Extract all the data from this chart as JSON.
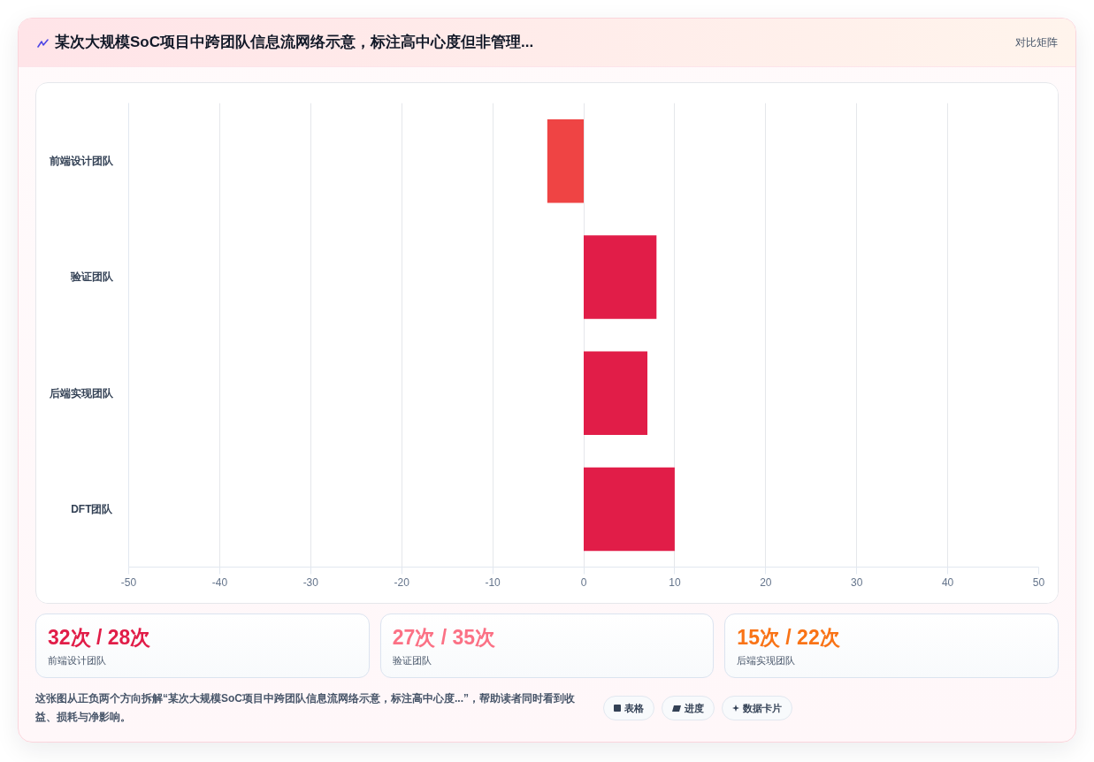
{
  "chart_data": [
    {
      "type": "bar",
      "orientation": "horizontal",
      "title": "某次大规模SoC项目中跨团队信息流网络示意，标注高中心度但非管理...",
      "categories": [
        "前端设计团队",
        "验证团队",
        "后端实现团队",
        "DFT团队"
      ],
      "values": [
        -4,
        8,
        7,
        10
      ],
      "colors": [
        "#ef4444",
        "#e11d48",
        "#e11d48",
        "#e11d48"
      ],
      "xlim": [
        -50,
        50
      ],
      "xticks": [
        -50,
        -40,
        -30,
        -20,
        -10,
        0,
        10,
        20,
        30,
        40,
        50
      ],
      "grid": "x",
      "annotations": [
        "对比矩阵",
        "这张图从正负两个方向拆解“某次大规模SoC项目中跨团队信息流网络示意，标注高中心度...”，帮助读者同时看到收益、损耗与净影响。",
        "表格",
        "进度",
        "数据卡片"
      ]
    },
    {
      "type": "other",
      "title": "32次 / 28次",
      "subtitle": "前端设计团队",
      "colors": [
        "#e11d48"
      ]
    },
    {
      "type": "other",
      "title": "27次 / 35次",
      "subtitle": "验证团队",
      "colors": [
        "#fb7185"
      ]
    },
    {
      "type": "other",
      "title": "15次 / 22次",
      "subtitle": "后端实现团队",
      "colors": [
        "#f97316"
      ]
    }
  ]
}
